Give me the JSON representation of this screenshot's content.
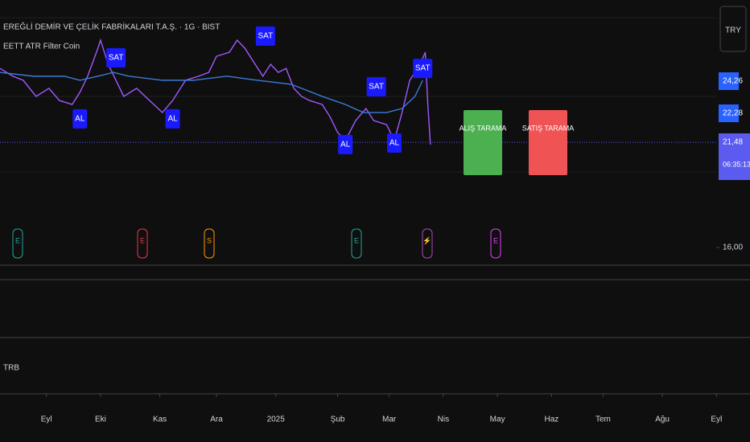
{
  "chart_data": {
    "type": "line",
    "title": "EREĞLİ DEMİR VE ÇELİK FABRİKALARI T.A.Ş. · 1G · BIST",
    "indicator": "EETT ATR Filter Coin",
    "currency": "TRY",
    "pane_label": "TRB",
    "countdown": "06:35:13",
    "xlim": [
      0,
      291
    ],
    "xticks": [
      {
        "value": 18,
        "label": "Eyl"
      },
      {
        "value": 39,
        "label": "Eki"
      },
      {
        "value": 62,
        "label": "Kas"
      },
      {
        "value": 84,
        "label": "Ara"
      },
      {
        "value": 107,
        "label": "2025"
      },
      {
        "value": 131,
        "label": "Şub"
      },
      {
        "value": 151,
        "label": "Mar"
      },
      {
        "value": 172,
        "label": "Nis"
      },
      {
        "value": 193,
        "label": "May"
      },
      {
        "value": 214,
        "label": "Haz"
      },
      {
        "value": 234,
        "label": "Tem"
      },
      {
        "value": 257,
        "label": "Ağu"
      },
      {
        "value": 278,
        "label": "Eyl"
      }
    ],
    "ylim": [
      15.08,
      28.89
    ],
    "yticks": [
      {
        "value": 16,
        "label": "16,00"
      }
    ],
    "series": [
      {
        "color": "#a259ff",
        "x": [
          0,
          5,
          9,
          14,
          19,
          23,
          28,
          31,
          34,
          38,
          39,
          42,
          45,
          48,
          53,
          58,
          63,
          67,
          72,
          77,
          81,
          84,
          89,
          92,
          95,
          98,
          102,
          105,
          108,
          111,
          114,
          117,
          120,
          125,
          128,
          131,
          134,
          138,
          142,
          145,
          150,
          153,
          156,
          159,
          163,
          165,
          166,
          167
        ],
        "values": [
          25.33,
          24.92,
          24.71,
          23.87,
          24.29,
          23.66,
          23.45,
          24.08,
          24.92,
          26.38,
          26.8,
          25.54,
          24.71,
          23.87,
          24.29,
          23.66,
          23.03,
          23.66,
          24.71,
          24.92,
          25.12,
          25.96,
          26.17,
          26.8,
          26.38,
          25.75,
          24.92,
          25.54,
          25.12,
          25.33,
          24.29,
          23.87,
          23.66,
          23.45,
          22.82,
          21.99,
          21.57,
          22.61,
          23.24,
          22.61,
          22.4,
          21.57,
          23.03,
          24.71,
          25.54,
          26.17,
          23.45,
          21.36
        ]
      },
      {
        "color": "#3d7bd9",
        "x": [
          0,
          13,
          25,
          31,
          38,
          44,
          50,
          63,
          75,
          88,
          100,
          113,
          125,
          134,
          141,
          150,
          156,
          161,
          164
        ],
        "values": [
          25.12,
          24.92,
          24.92,
          24.71,
          24.92,
          25.12,
          24.92,
          24.71,
          24.71,
          24.92,
          24.71,
          24.5,
          23.87,
          23.45,
          23.03,
          23.03,
          23.24,
          23.87,
          24.71
        ]
      }
    ],
    "signals": [
      {
        "label": "AL",
        "x": 31,
        "value": 22.7,
        "color": "#1a1aff"
      },
      {
        "label": "AL",
        "x": 67,
        "value": 22.7,
        "color": "#1a1aff"
      },
      {
        "label": "AL",
        "x": 134,
        "value": 21.36,
        "color": "#1a1aff"
      },
      {
        "label": "AL",
        "x": 153,
        "value": 21.44,
        "color": "#1a1aff"
      },
      {
        "label": "SAT",
        "x": 45,
        "value": 25.88,
        "color": "#1a1aff"
      },
      {
        "label": "SAT",
        "x": 103,
        "value": 27.01,
        "color": "#1a1aff"
      },
      {
        "label": "SAT",
        "x": 146,
        "value": 24.37,
        "color": "#1a1aff"
      },
      {
        "label": "SAT",
        "x": 164,
        "value": 25.33,
        "color": "#1a1aff"
      }
    ],
    "price_labels": [
      {
        "value": 24.26,
        "label": "24,26",
        "color": "#2962ff"
      },
      {
        "value": 22.28,
        "label": "22,28",
        "color": "#2962ff"
      },
      {
        "value": 21.48,
        "label": "21,48",
        "color": "#5b5bef"
      }
    ],
    "buttons": [
      {
        "label": "ALIŞ TARAMA",
        "color": "#4caf50"
      },
      {
        "label": "SATIŞ TARAMA",
        "color": "#f05353"
      }
    ],
    "events": [
      {
        "label": "E",
        "color": "#26a69a"
      },
      {
        "label": "E",
        "color": "#f23645"
      },
      {
        "label": "S",
        "color": "#ff9800"
      },
      {
        "label": "E",
        "color": "#26a69a"
      },
      {
        "label": "⚡",
        "color": "#ab47bc"
      },
      {
        "label": "E",
        "color": "#e040fb"
      }
    ]
  }
}
